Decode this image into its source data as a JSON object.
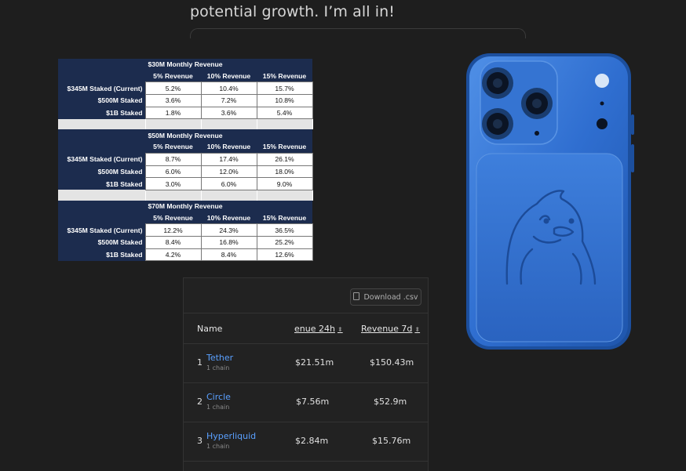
{
  "quote": {
    "text": "potential growth. I’m all in!"
  },
  "revenue_table": {
    "columns": [
      "5% Revenue",
      "10% Revenue",
      "15% Revenue"
    ],
    "sections": [
      {
        "title": "$30M Monthly Revenue",
        "rows": [
          {
            "label": "$345M Staked (Current)",
            "values": [
              "5.2%",
              "10.4%",
              "15.7%"
            ]
          },
          {
            "label": "$500M Staked",
            "values": [
              "3.6%",
              "7.2%",
              "10.8%"
            ]
          },
          {
            "label": "$1B Staked",
            "values": [
              "1.8%",
              "3.6%",
              "5.4%"
            ]
          }
        ]
      },
      {
        "title": "$50M Monthly Revenue",
        "rows": [
          {
            "label": "$345M Staked (Current)",
            "values": [
              "8.7%",
              "17.4%",
              "26.1%"
            ]
          },
          {
            "label": "$500M Staked",
            "values": [
              "6.0%",
              "12.0%",
              "18.0%"
            ]
          },
          {
            "label": "$1B Staked",
            "values": [
              "3.0%",
              "6.0%",
              "9.0%"
            ]
          }
        ]
      },
      {
        "title": "$70M Monthly Revenue",
        "rows": [
          {
            "label": "$345M Staked (Current)",
            "values": [
              "12.2%",
              "24.3%",
              "36.5%"
            ]
          },
          {
            "label": "$500M Staked",
            "values": [
              "8.4%",
              "16.8%",
              "25.2%"
            ]
          },
          {
            "label": "$1B Staked",
            "values": [
              "4.2%",
              "8.4%",
              "12.6%"
            ]
          }
        ]
      }
    ]
  },
  "revenue_list": {
    "download_label": "Download .csv",
    "headers": {
      "name": "Name",
      "rev24": "enue 24h",
      "rev7": "Revenue 7d"
    },
    "rows": [
      {
        "rank": "1",
        "name": "Tether",
        "chains": "1 chain",
        "rev24": "$21.51m",
        "rev7": "$150.43m"
      },
      {
        "rank": "2",
        "name": "Circle",
        "chains": "1 chain",
        "rev24": "$7.56m",
        "rev7": "$52.9m"
      },
      {
        "rank": "3",
        "name": "Hyperliquid",
        "chains": "1 chain",
        "rev24": "$2.84m",
        "rev7": "$15.76m"
      }
    ]
  },
  "colors": {
    "phone_blue": "#2d6fce",
    "link_blue": "#5aa0ff",
    "table_navy": "#1c2c4e"
  }
}
